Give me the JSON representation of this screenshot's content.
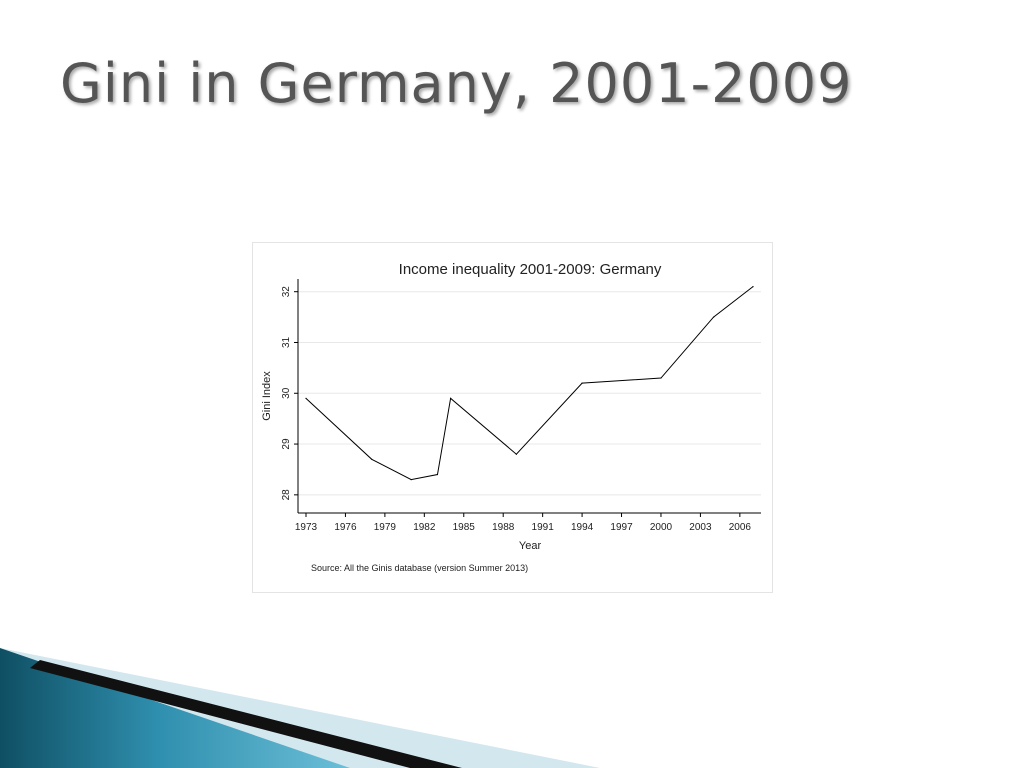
{
  "slide": {
    "title": "Gini in Germany, 2001-2009"
  },
  "chart_data": {
    "type": "line",
    "title": "Income inequality 2001-2009: Germany",
    "xlabel": "Year",
    "ylabel": "Gini Index",
    "source_note": "Source:  All the Ginis database (version Summer 2013)",
    "x_ticks": [
      1973,
      1976,
      1979,
      1982,
      1985,
      1988,
      1991,
      1994,
      1997,
      2000,
      2003,
      2006
    ],
    "y_ticks": [
      28,
      29,
      30,
      31,
      32
    ],
    "xlim": [
      1973,
      2007
    ],
    "ylim": [
      28,
      32
    ],
    "grid": true,
    "series": [
      {
        "x": [
          1973,
          1978,
          1981,
          1983,
          1984,
          1989,
          1994,
          2000,
          2004,
          2007
        ],
        "y": [
          29.9,
          28.7,
          28.3,
          28.4,
          29.9,
          28.8,
          30.2,
          30.3,
          31.5,
          32.1
        ]
      }
    ]
  },
  "colors": {
    "title_text": "#555555",
    "line": "#000000",
    "grid": "#e8e8e8",
    "deco_dark": "#0f4f63",
    "deco_mid": "#2f8fae",
    "deco_light": "#cfe6ef"
  }
}
